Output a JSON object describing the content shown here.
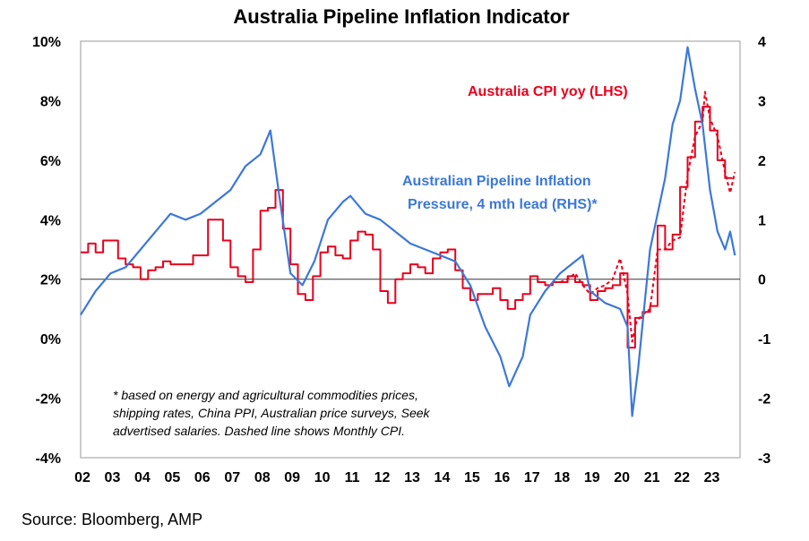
{
  "chart_data": {
    "type": "line",
    "title": "Australia Pipeline Inflation Indicator",
    "left_axis": {
      "ticks": [
        "10%",
        "8%",
        "6%",
        "4%",
        "2%",
        "0%",
        "-2%",
        "-4%"
      ],
      "ylim": [
        -4,
        10
      ]
    },
    "right_axis": {
      "ticks": [
        "4",
        "3",
        "2",
        "1",
        "0",
        "-1",
        "-2",
        "-3"
      ],
      "ylim": [
        -3,
        4
      ]
    },
    "x_ticks": [
      "02",
      "03",
      "04",
      "05",
      "06",
      "07",
      "08",
      "09",
      "10",
      "11",
      "12",
      "13",
      "14",
      "15",
      "16",
      "17",
      "18",
      "19",
      "20",
      "21",
      "22",
      "23"
    ],
    "xlim": [
      2002,
      2024
    ],
    "zero_line_rhs": 0,
    "series": [
      {
        "name": "Australia CPI yoy (LHS)",
        "axis": "left",
        "color": "#e8001c",
        "step": true,
        "points": [
          [
            2002.0,
            2.9
          ],
          [
            2002.25,
            3.2
          ],
          [
            2002.5,
            2.9
          ],
          [
            2002.75,
            3.3
          ],
          [
            2003.0,
            3.3
          ],
          [
            2003.25,
            2.7
          ],
          [
            2003.5,
            2.5
          ],
          [
            2003.75,
            2.4
          ],
          [
            2004.0,
            2.0
          ],
          [
            2004.25,
            2.3
          ],
          [
            2004.5,
            2.4
          ],
          [
            2004.75,
            2.6
          ],
          [
            2005.0,
            2.5
          ],
          [
            2005.25,
            2.5
          ],
          [
            2005.5,
            2.5
          ],
          [
            2005.75,
            2.8
          ],
          [
            2006.0,
            2.8
          ],
          [
            2006.25,
            4.0
          ],
          [
            2006.5,
            4.0
          ],
          [
            2006.75,
            3.3
          ],
          [
            2007.0,
            2.4
          ],
          [
            2007.25,
            2.1
          ],
          [
            2007.5,
            1.9
          ],
          [
            2007.75,
            3.0
          ],
          [
            2008.0,
            4.3
          ],
          [
            2008.25,
            4.4
          ],
          [
            2008.5,
            5.0
          ],
          [
            2008.75,
            3.7
          ],
          [
            2009.0,
            2.5
          ],
          [
            2009.25,
            1.5
          ],
          [
            2009.5,
            1.3
          ],
          [
            2009.75,
            2.1
          ],
          [
            2010.0,
            2.9
          ],
          [
            2010.25,
            3.1
          ],
          [
            2010.5,
            2.8
          ],
          [
            2010.75,
            2.7
          ],
          [
            2011.0,
            3.3
          ],
          [
            2011.25,
            3.6
          ],
          [
            2011.5,
            3.5
          ],
          [
            2011.75,
            3.0
          ],
          [
            2012.0,
            1.6
          ],
          [
            2012.25,
            1.2
          ],
          [
            2012.5,
            2.0
          ],
          [
            2012.75,
            2.2
          ],
          [
            2013.0,
            2.5
          ],
          [
            2013.25,
            2.4
          ],
          [
            2013.5,
            2.2
          ],
          [
            2013.75,
            2.7
          ],
          [
            2014.0,
            2.9
          ],
          [
            2014.25,
            3.0
          ],
          [
            2014.5,
            2.3
          ],
          [
            2014.75,
            1.7
          ],
          [
            2015.0,
            1.3
          ],
          [
            2015.25,
            1.5
          ],
          [
            2015.5,
            1.5
          ],
          [
            2015.75,
            1.7
          ],
          [
            2016.0,
            1.3
          ],
          [
            2016.25,
            1.0
          ],
          [
            2016.5,
            1.3
          ],
          [
            2016.75,
            1.5
          ],
          [
            2017.0,
            2.1
          ],
          [
            2017.25,
            1.9
          ],
          [
            2017.5,
            1.8
          ],
          [
            2017.75,
            1.9
          ],
          [
            2018.0,
            1.9
          ],
          [
            2018.25,
            2.1
          ],
          [
            2018.5,
            1.9
          ],
          [
            2018.75,
            1.8
          ],
          [
            2019.0,
            1.3
          ],
          [
            2019.25,
            1.6
          ],
          [
            2019.5,
            1.7
          ],
          [
            2019.75,
            1.8
          ],
          [
            2020.0,
            2.2
          ],
          [
            2020.25,
            -0.3
          ],
          [
            2020.5,
            0.7
          ],
          [
            2020.75,
            0.9
          ],
          [
            2021.0,
            1.1
          ],
          [
            2021.25,
            3.8
          ],
          [
            2021.5,
            3.0
          ],
          [
            2021.75,
            3.5
          ],
          [
            2022.0,
            5.1
          ],
          [
            2022.25,
            6.1
          ],
          [
            2022.5,
            7.3
          ],
          [
            2022.75,
            7.8
          ],
          [
            2023.0,
            7.0
          ],
          [
            2023.25,
            6.0
          ],
          [
            2023.5,
            5.4
          ],
          [
            2023.75,
            5.4
          ]
        ]
      },
      {
        "name": "Monthly CPI (dashed)",
        "axis": "left",
        "color": "#e8001c",
        "dashed": true,
        "points": [
          [
            2018.0,
            1.9
          ],
          [
            2018.25,
            2.0
          ],
          [
            2018.5,
            2.2
          ],
          [
            2018.75,
            1.8
          ],
          [
            2019.0,
            1.5
          ],
          [
            2019.25,
            1.7
          ],
          [
            2019.5,
            1.8
          ],
          [
            2019.75,
            2.0
          ],
          [
            2020.0,
            2.7
          ],
          [
            2020.25,
            1.5
          ],
          [
            2020.4,
            -0.1
          ],
          [
            2020.55,
            0.6
          ],
          [
            2020.75,
            0.8
          ],
          [
            2021.0,
            1.0
          ],
          [
            2021.25,
            3.0
          ],
          [
            2021.5,
            3.0
          ],
          [
            2021.75,
            3.3
          ],
          [
            2022.0,
            3.4
          ],
          [
            2022.25,
            5.5
          ],
          [
            2022.5,
            6.8
          ],
          [
            2022.75,
            7.3
          ],
          [
            2022.83,
            8.3
          ],
          [
            2023.0,
            7.4
          ],
          [
            2023.25,
            6.8
          ],
          [
            2023.5,
            5.6
          ],
          [
            2023.67,
            4.9
          ],
          [
            2023.83,
            5.6
          ]
        ]
      },
      {
        "name": "Australian Pipeline Inflation Pressure, 4 mth lead (RHS)*",
        "axis": "right",
        "color": "#3c78d8",
        "points": [
          [
            2002.0,
            -0.6
          ],
          [
            2002.5,
            -0.2
          ],
          [
            2003.0,
            0.1
          ],
          [
            2003.5,
            0.2
          ],
          [
            2004.0,
            0.5
          ],
          [
            2004.5,
            0.8
          ],
          [
            2005.0,
            1.1
          ],
          [
            2005.5,
            1.0
          ],
          [
            2006.0,
            1.1
          ],
          [
            2006.5,
            1.3
          ],
          [
            2007.0,
            1.5
          ],
          [
            2007.5,
            1.9
          ],
          [
            2008.0,
            2.1
          ],
          [
            2008.33,
            2.5
          ],
          [
            2008.6,
            1.5
          ],
          [
            2009.0,
            0.1
          ],
          [
            2009.4,
            -0.1
          ],
          [
            2009.8,
            0.3
          ],
          [
            2010.25,
            1.0
          ],
          [
            2010.75,
            1.3
          ],
          [
            2011.0,
            1.4
          ],
          [
            2011.5,
            1.1
          ],
          [
            2012.0,
            1.0
          ],
          [
            2012.5,
            0.8
          ],
          [
            2013.0,
            0.6
          ],
          [
            2013.5,
            0.5
          ],
          [
            2014.0,
            0.4
          ],
          [
            2014.5,
            0.3
          ],
          [
            2015.0,
            -0.1
          ],
          [
            2015.5,
            -0.8
          ],
          [
            2016.0,
            -1.3
          ],
          [
            2016.3,
            -1.8
          ],
          [
            2016.75,
            -1.3
          ],
          [
            2017.0,
            -0.6
          ],
          [
            2017.5,
            -0.2
          ],
          [
            2018.0,
            0.1
          ],
          [
            2018.25,
            0.2
          ],
          [
            2018.75,
            0.4
          ],
          [
            2019.0,
            -0.2
          ],
          [
            2019.5,
            -0.4
          ],
          [
            2020.0,
            -0.5
          ],
          [
            2020.25,
            -0.8
          ],
          [
            2020.4,
            -2.3
          ],
          [
            2020.6,
            -1.5
          ],
          [
            2020.8,
            -0.5
          ],
          [
            2021.0,
            0.5
          ],
          [
            2021.5,
            1.7
          ],
          [
            2021.75,
            2.6
          ],
          [
            2022.0,
            3.0
          ],
          [
            2022.25,
            3.9
          ],
          [
            2022.5,
            3.2
          ],
          [
            2022.75,
            2.6
          ],
          [
            2023.0,
            1.5
          ],
          [
            2023.25,
            0.8
          ],
          [
            2023.5,
            0.5
          ],
          [
            2023.67,
            0.8
          ],
          [
            2023.83,
            0.4
          ]
        ]
      }
    ],
    "annotations": {
      "cpi_label": "Australia CPI yoy (LHS)",
      "pipeline_label_line1": "Australian Pipeline Inflation",
      "pipeline_label_line2": "Pressure, 4 mth lead (RHS)*",
      "note_line1": "* based on energy and agricultural commodities prices,",
      "note_line2": "shipping rates, China PPI, Australian price surveys, Seek",
      "note_line3": "advertised salaries. Dashed line shows Monthly CPI."
    },
    "grid": false
  },
  "source": "Source: Bloomberg, AMP"
}
